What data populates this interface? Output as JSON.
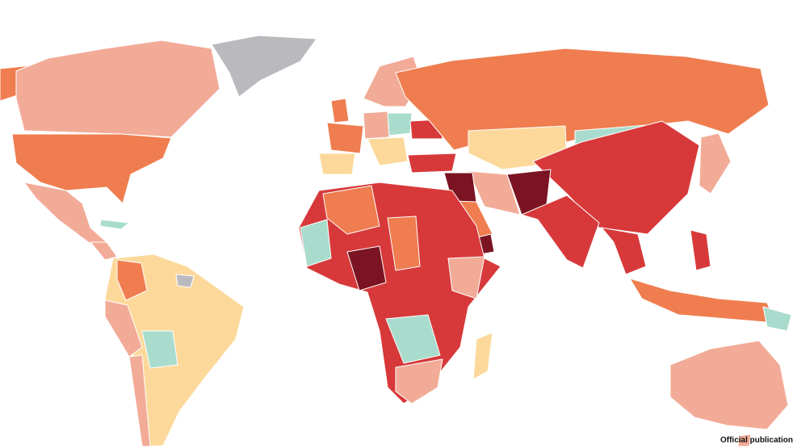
{
  "caption": "Official publication"
}
